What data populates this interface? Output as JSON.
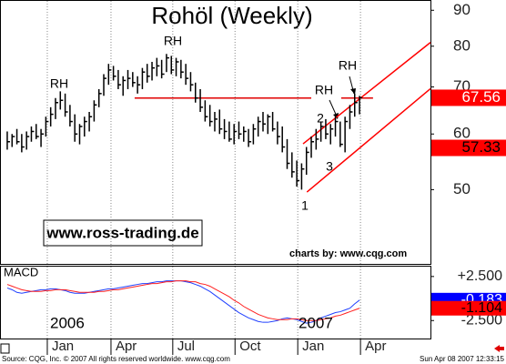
{
  "chart_data": [
    {
      "type": "ohlc",
      "title": "Rohöl (Weekly)",
      "log_scale": true,
      "grid": true,
      "color": "#000000",
      "x": [
        0,
        1,
        2,
        3,
        4,
        5,
        6,
        7,
        8,
        9,
        10,
        11,
        12,
        13,
        14,
        15,
        16,
        17,
        18,
        19,
        20,
        21,
        22,
        23,
        24,
        25,
        26,
        27,
        28,
        29,
        30,
        31,
        32,
        33,
        34,
        35,
        36,
        37,
        38,
        39,
        40,
        41,
        42,
        43,
        44,
        45,
        46,
        47,
        48,
        49,
        50,
        51,
        52,
        53,
        54,
        55,
        56,
        57,
        58,
        59,
        60,
        61,
        62,
        63,
        64,
        65,
        66,
        67,
        68,
        69,
        70,
        71,
        72,
        73
      ],
      "high": [
        60.5,
        60.0,
        61.0,
        60.0,
        60.5,
        61.5,
        62.0,
        61.0,
        63.5,
        65.5,
        67.5,
        69.0,
        68.5,
        66.0,
        64.0,
        62.0,
        63.5,
        64.5,
        67.0,
        69.5,
        73.0,
        75.5,
        75.0,
        74.0,
        72.5,
        74.0,
        73.5,
        72.5,
        74.5,
        75.5,
        76.0,
        77.0,
        76.5,
        78.0,
        77.5,
        77.0,
        76.5,
        75.5,
        73.5,
        71.0,
        69.5,
        67.0,
        66.0,
        64.5,
        65.0,
        63.0,
        62.5,
        62.0,
        62.5,
        61.5,
        61.0,
        62.0,
        63.5,
        64.5,
        64.0,
        64.5,
        62.5,
        61.5,
        59.0,
        56.5,
        55.0,
        54.5,
        57.5,
        59.5,
        61.0,
        62.5,
        63.0,
        62.0,
        63.5,
        62.5,
        63.5,
        66.0,
        68.5,
        68.0
      ],
      "low": [
        57.0,
        57.5,
        58.0,
        56.5,
        57.0,
        58.5,
        59.0,
        57.5,
        59.5,
        61.5,
        63.0,
        65.0,
        63.5,
        61.5,
        58.5,
        58.0,
        59.5,
        60.5,
        62.5,
        65.5,
        68.0,
        70.5,
        71.5,
        69.5,
        68.0,
        69.5,
        70.0,
        68.5,
        69.5,
        71.0,
        71.5,
        72.5,
        72.0,
        73.5,
        73.0,
        72.5,
        72.0,
        70.5,
        69.0,
        66.5,
        64.5,
        62.5,
        61.5,
        60.5,
        60.0,
        59.0,
        58.5,
        58.0,
        59.0,
        58.5,
        57.5,
        58.0,
        59.5,
        60.5,
        60.0,
        60.5,
        58.0,
        56.5,
        53.5,
        52.0,
        50.5,
        50.0,
        52.5,
        55.5,
        57.0,
        58.5,
        59.0,
        58.0,
        59.5,
        57.5,
        56.5,
        61.0,
        63.5,
        64.0
      ],
      "close": [
        58.5,
        59.5,
        58.5,
        57.5,
        59.5,
        60.5,
        59.5,
        60.0,
        62.5,
        64.0,
        66.5,
        67.0,
        64.5,
        62.5,
        60.0,
        61.5,
        62.5,
        63.5,
        66.0,
        68.5,
        72.0,
        74.0,
        72.5,
        70.5,
        71.5,
        72.0,
        71.0,
        70.5,
        73.5,
        72.5,
        74.5,
        75.0,
        73.0,
        77.0,
        74.0,
        76.0,
        73.5,
        72.0,
        70.5,
        67.5,
        65.5,
        63.5,
        62.5,
        63.0,
        61.0,
        60.5,
        59.0,
        60.5,
        60.0,
        60.5,
        58.5,
        61.0,
        62.5,
        62.0,
        63.5,
        61.0,
        59.5,
        57.5,
        54.5,
        53.0,
        51.5,
        53.5,
        56.5,
        58.5,
        59.0,
        61.5,
        60.0,
        61.0,
        62.5,
        58.0,
        62.5,
        64.5,
        66.5,
        67.56
      ],
      "xlim": [
        -1.5,
        87.7
      ],
      "ylim": [
        39.2,
        92.8
      ],
      "yticks": [
        90,
        80,
        70,
        60,
        50
      ],
      "xticks": [
        {
          "value": 8.3,
          "label": "Jan"
        },
        {
          "value": 21.5,
          "label": "Apr"
        },
        {
          "value": 34.3,
          "label": "Jul"
        },
        {
          "value": 47.2,
          "label": "Oct"
        },
        {
          "value": 60.2,
          "label": "Jan"
        },
        {
          "value": 73.2,
          "label": "Apr"
        }
      ],
      "lines": [
        {
          "color": "#e00000",
          "x": [
            26.4,
            63.0
          ],
          "y": [
            67.5,
            67.5
          ]
        },
        {
          "color": "#e00000",
          "x": [
            69.2,
            75.8
          ],
          "y": [
            67.5,
            67.5
          ]
        },
        {
          "color": "#ff0000",
          "x": [
            61.3,
            87.7
          ],
          "y": [
            58.1,
            81.0
          ]
        },
        {
          "color": "#ff0000",
          "x": [
            62.1,
            87.7
          ],
          "y": [
            49.6,
            69.6
          ]
        }
      ],
      "price_markers": [
        {
          "value": 67.56,
          "color": "#ff0000",
          "text_color": "#ffffff"
        },
        {
          "value": 57.33,
          "color": "#ff0000",
          "text_color": "#000000"
        }
      ],
      "annotations": [
        "RH",
        "RH",
        "RH",
        "RH",
        "1",
        "2",
        "3"
      ],
      "watermark": "www.ross-trading.de",
      "credit": "charts by: www.cqg.com"
    },
    {
      "type": "line",
      "label": "MACD",
      "ylim": [
        -4.54,
        3.62
      ],
      "yticks": [
        {
          "value": 2.5,
          "label": "+2.500"
        },
        {
          "value": -2.5,
          "label": "-2.500"
        }
      ],
      "series": [
        {
          "color": "#2040ff",
          "values": [
            1.2,
            1.0,
            0.7,
            0.6,
            0.7,
            0.8,
            0.9,
            1.0,
            1.0,
            1.1,
            1.1,
            1.0,
            0.9,
            0.7,
            0.6,
            0.6,
            0.6,
            0.7,
            0.8,
            0.9,
            1.0,
            1.1,
            1.1,
            1.2,
            1.3,
            1.4,
            1.5,
            1.6,
            1.7,
            1.7,
            1.8,
            1.9,
            1.9,
            2.0,
            2.0,
            2.0,
            2.0,
            1.9,
            1.8,
            1.6,
            1.4,
            1.1,
            0.8,
            0.4,
            0.0,
            -0.4,
            -0.8,
            -1.2,
            -1.6,
            -1.9,
            -2.2,
            -2.4,
            -2.6,
            -2.7,
            -2.7,
            -2.6,
            -2.5,
            -2.3,
            -2.2,
            -2.3,
            -2.4,
            -2.6,
            -2.8,
            -2.7,
            -2.5,
            -2.2,
            -2.0,
            -1.8,
            -1.6,
            -1.5,
            -1.3,
            -1.1,
            -0.6,
            -0.183
          ]
        },
        {
          "color": "#ff2020",
          "values": [
            1.6,
            1.4,
            1.2,
            1.0,
            0.9,
            0.8,
            0.8,
            0.8,
            0.9,
            0.9,
            1.0,
            1.0,
            1.0,
            0.9,
            0.8,
            0.7,
            0.7,
            0.7,
            0.7,
            0.8,
            0.8,
            0.9,
            1.0,
            1.0,
            1.1,
            1.2,
            1.3,
            1.4,
            1.5,
            1.6,
            1.7,
            1.7,
            1.8,
            1.9,
            1.9,
            2.0,
            2.0,
            2.0,
            1.9,
            1.9,
            1.7,
            1.6,
            1.4,
            1.1,
            0.8,
            0.5,
            0.2,
            -0.2,
            -0.5,
            -0.9,
            -1.2,
            -1.5,
            -1.8,
            -2.0,
            -2.2,
            -2.3,
            -2.4,
            -2.4,
            -2.4,
            -2.3,
            -2.3,
            -2.4,
            -2.5,
            -2.5,
            -2.5,
            -2.4,
            -2.3,
            -2.2,
            -2.0,
            -1.9,
            -1.7,
            -1.5,
            -1.3,
            -1.104
          ]
        }
      ],
      "value_markers": [
        {
          "value": -0.183,
          "color": "#0000ff",
          "text_color": "#ffffff"
        },
        {
          "value": -1.104,
          "color": "#ff0000",
          "text_color": "#000000"
        }
      ],
      "year_labels": [
        "2006",
        "2007"
      ]
    }
  ],
  "footer": {
    "source": "Source: CQG, Inc. © 2007 All rights reserved worldwide. www.cqg.com",
    "timestamp": "Sun Apr 08 2007 12:33:15"
  }
}
